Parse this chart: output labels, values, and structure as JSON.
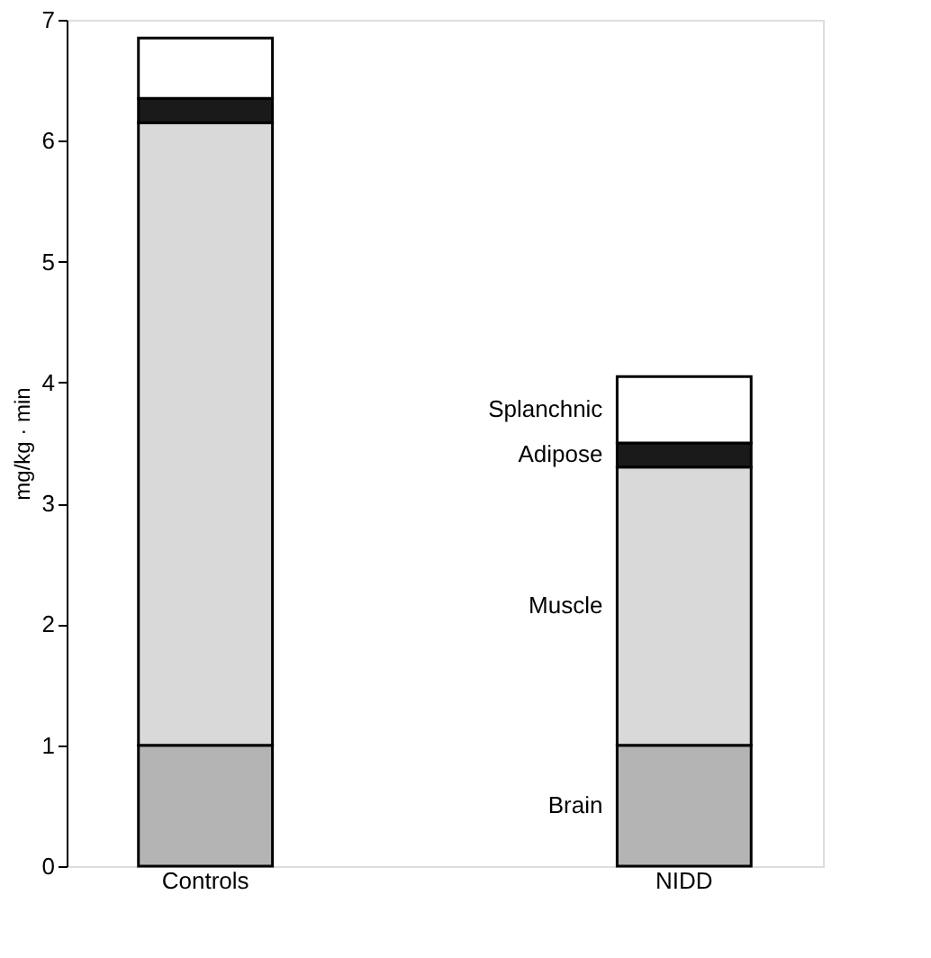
{
  "chart_data": {
    "type": "bar",
    "stacked": true,
    "ylabel": "mg/kg · min",
    "categories": [
      "Controls",
      "NIDD"
    ],
    "series": [
      {
        "name": "Brain",
        "color": "#b4b4b4",
        "values": [
          1.0,
          1.0
        ]
      },
      {
        "name": "Muscle",
        "color": "#d9d9d9",
        "values": [
          5.15,
          2.3
        ]
      },
      {
        "name": "Adipose",
        "color": "#1a1a1a",
        "values": [
          0.2,
          0.2
        ]
      },
      {
        "name": "Splanchnic",
        "color": "#ffffff",
        "values": [
          0.5,
          0.55
        ]
      }
    ],
    "ylim": [
      0,
      7
    ],
    "yticks": [
      0,
      1,
      2,
      3,
      4,
      5,
      6,
      7
    ],
    "grid": false,
    "legend": false
  }
}
